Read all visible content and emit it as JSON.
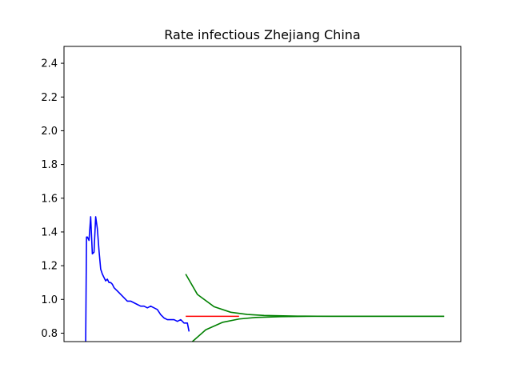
{
  "chart_data": {
    "type": "line",
    "title": "Rate infectious Zhejiang China",
    "xlabel": "",
    "ylabel": "",
    "xlim": [
      0,
      238
    ],
    "ylim": [
      0.75,
      2.5
    ],
    "grid": false,
    "x_ticks_visible": false,
    "y_ticks": [
      0.8,
      1.0,
      1.2,
      1.4,
      1.6,
      1.8,
      2.0,
      2.2,
      2.4
    ],
    "y_tick_labels": [
      "0.8",
      "1.0",
      "1.2",
      "1.4",
      "1.6",
      "1.8",
      "2.0",
      "2.2",
      "2.4"
    ],
    "series": [
      {
        "color": "#0000ff",
        "x": [
          13,
          13.5,
          14,
          15,
          16,
          17,
          18,
          19,
          20,
          21,
          22,
          23,
          24,
          25,
          26,
          27,
          28,
          29,
          30,
          31,
          32,
          34,
          36,
          38,
          40,
          42,
          44,
          46,
          48,
          50,
          52,
          54,
          56,
          58,
          60,
          62,
          64,
          66,
          68,
          70,
          72,
          74,
          75
        ],
        "y": [
          0.74,
          1.37,
          1.37,
          1.35,
          1.49,
          1.27,
          1.28,
          1.49,
          1.42,
          1.29,
          1.18,
          1.15,
          1.13,
          1.11,
          1.12,
          1.1,
          1.1,
          1.09,
          1.07,
          1.06,
          1.05,
          1.03,
          1.01,
          0.99,
          0.99,
          0.98,
          0.97,
          0.96,
          0.96,
          0.95,
          0.96,
          0.95,
          0.94,
          0.91,
          0.89,
          0.88,
          0.88,
          0.88,
          0.87,
          0.88,
          0.86,
          0.86,
          0.81
        ]
      },
      {
        "color": "#ff0000",
        "x": [
          73,
          105
        ],
        "y": [
          0.9,
          0.9
        ]
      },
      {
        "color": "#008000",
        "x": [
          73,
          80,
          90,
          100,
          110,
          120,
          140,
          160,
          180,
          200,
          228
        ],
        "y": [
          1.15,
          1.03,
          0.957,
          0.924,
          0.911,
          0.905,
          0.901,
          0.9,
          0.9,
          0.9,
          0.9
        ]
      },
      {
        "color": "#008000",
        "x": [
          77,
          85,
          95,
          105,
          115,
          130,
          150,
          175,
          200,
          228
        ],
        "y": [
          0.75,
          0.82,
          0.864,
          0.884,
          0.893,
          0.898,
          0.9,
          0.9,
          0.9,
          0.9
        ]
      }
    ]
  }
}
